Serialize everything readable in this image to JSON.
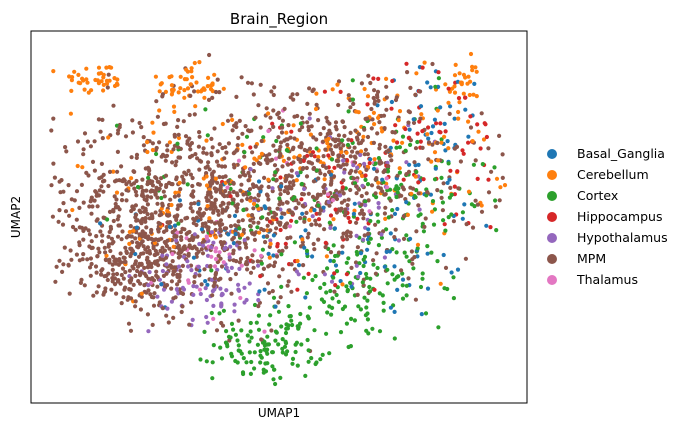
{
  "chart_data": {
    "type": "scatter",
    "title": "Brain_Region",
    "xlabel": "UMAP1",
    "ylabel": "UMAP2",
    "xticks": false,
    "yticks": false,
    "grid": false,
    "legend_position": "right",
    "xlim": [
      0,
      100
    ],
    "ylim": [
      0,
      100
    ],
    "series": [
      {
        "name": "Basal_Ganglia",
        "color": "#1f77b4",
        "clusters": [
          {
            "cx": 82,
            "cy": 76,
            "rx": 12,
            "ry": 18,
            "n": 40
          },
          {
            "cx": 70,
            "cy": 45,
            "rx": 22,
            "ry": 22,
            "n": 70
          },
          {
            "cx": 40,
            "cy": 45,
            "rx": 22,
            "ry": 20,
            "n": 40
          }
        ]
      },
      {
        "name": "Cerebellum",
        "color": "#ff7f0e",
        "clusters": [
          {
            "cx": 14,
            "cy": 87,
            "rx": 7,
            "ry": 4,
            "n": 40
          },
          {
            "cx": 31,
            "cy": 85,
            "rx": 6,
            "ry": 5,
            "n": 50
          },
          {
            "cx": 70,
            "cy": 70,
            "rx": 25,
            "ry": 24,
            "n": 120
          },
          {
            "cx": 35,
            "cy": 55,
            "rx": 28,
            "ry": 20,
            "n": 90
          },
          {
            "cx": 89,
            "cy": 84,
            "rx": 6,
            "ry": 9,
            "n": 25
          }
        ]
      },
      {
        "name": "Cortex",
        "color": "#2ca02c",
        "clusters": [
          {
            "cx": 48,
            "cy": 16,
            "rx": 10,
            "ry": 9,
            "n": 130
          },
          {
            "cx": 65,
            "cy": 30,
            "rx": 14,
            "ry": 12,
            "n": 100
          },
          {
            "cx": 74,
            "cy": 55,
            "rx": 16,
            "ry": 24,
            "n": 140
          },
          {
            "cx": 45,
            "cy": 60,
            "rx": 22,
            "ry": 20,
            "n": 60
          }
        ]
      },
      {
        "name": "Hippocampus",
        "color": "#d62728",
        "clusters": [
          {
            "cx": 80,
            "cy": 70,
            "rx": 16,
            "ry": 22,
            "n": 70
          },
          {
            "cx": 56,
            "cy": 50,
            "rx": 22,
            "ry": 22,
            "n": 50
          }
        ]
      },
      {
        "name": "Hypothalamus",
        "color": "#9467bd",
        "clusters": [
          {
            "cx": 36,
            "cy": 35,
            "rx": 11,
            "ry": 12,
            "n": 100
          },
          {
            "cx": 62,
            "cy": 55,
            "rx": 18,
            "ry": 18,
            "n": 60
          }
        ]
      },
      {
        "name": "MPM",
        "color": "#8c564b",
        "clusters": [
          {
            "cx": 30,
            "cy": 52,
            "rx": 23,
            "ry": 24,
            "n": 800
          },
          {
            "cx": 60,
            "cy": 62,
            "rx": 28,
            "ry": 24,
            "n": 600
          },
          {
            "cx": 22,
            "cy": 37,
            "rx": 12,
            "ry": 9,
            "n": 200
          }
        ]
      },
      {
        "name": "Thalamus",
        "color": "#e377c2",
        "clusters": [
          {
            "cx": 38,
            "cy": 38,
            "rx": 10,
            "ry": 10,
            "n": 30
          },
          {
            "cx": 55,
            "cy": 60,
            "rx": 20,
            "ry": 20,
            "n": 20
          }
        ]
      }
    ]
  }
}
